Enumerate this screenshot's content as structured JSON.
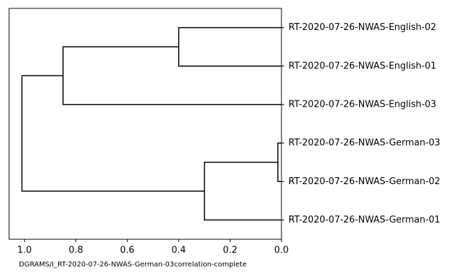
{
  "chart_data": {
    "type": "dendrogram",
    "labels": [
      "RT-2020-07-26-NWAS-English-02",
      "RT-2020-07-26-NWAS-English-01",
      "RT-2020-07-26-NWAS-English-03",
      "RT-2020-07-26-NWAS-German-03",
      "RT-2020-07-26-NWAS-German-02",
      "RT-2020-07-26-NWAS-German-01"
    ],
    "merges": [
      {
        "children": [
          3,
          4
        ],
        "height": 0.014
      },
      {
        "children": [
          6,
          5
        ],
        "height": 0.3
      },
      {
        "children": [
          0,
          1
        ],
        "height": 0.4
      },
      {
        "children": [
          8,
          2
        ],
        "height": 0.85
      },
      {
        "children": [
          9,
          7
        ],
        "height": 1.01
      }
    ],
    "xlabel": "DGRAMS/I_RT-2020-07-26-NWAS-German-03correlation-complete",
    "xlim": [
      1.06,
      0
    ],
    "xticks": [
      {
        "value": 1,
        "label": "1.0"
      },
      0.8,
      0.6,
      0.4,
      0.2,
      {
        "value": 0,
        "label": "0.0"
      }
    ],
    "color": "#000000"
  }
}
